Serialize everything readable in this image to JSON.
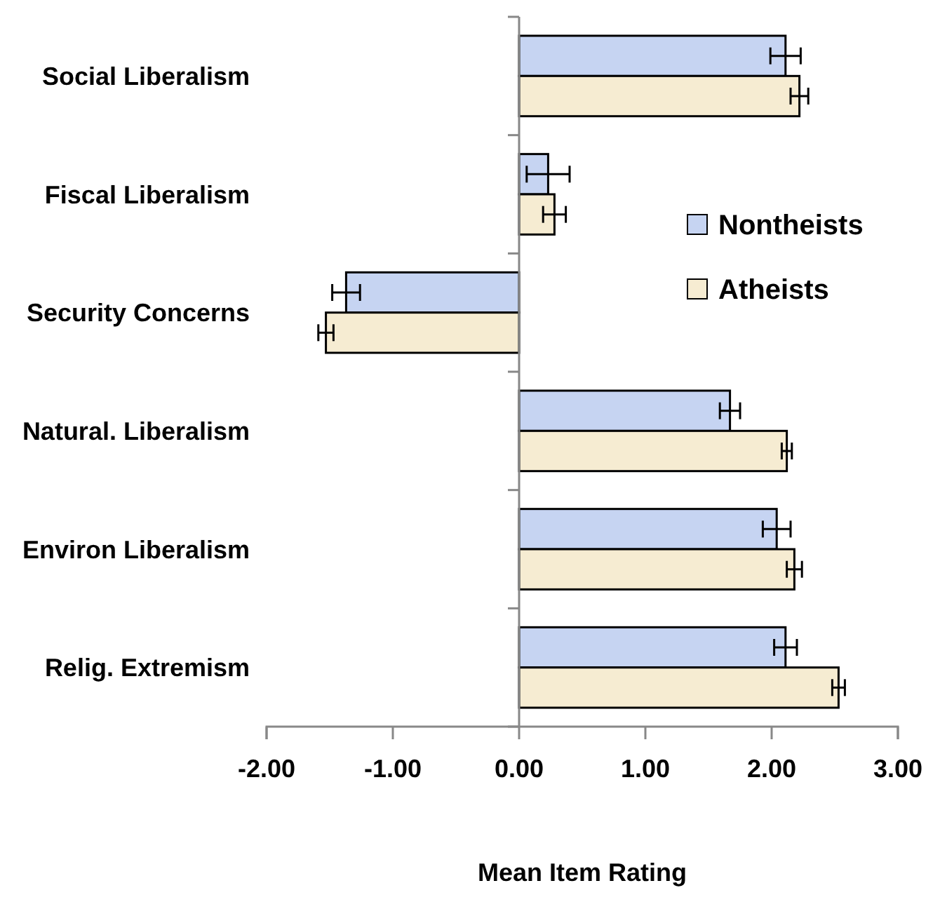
{
  "chart_data": {
    "type": "bar",
    "orientation": "horizontal",
    "xlabel": "Mean Item Rating",
    "categories": [
      "Social Liberalism",
      "Fiscal Liberalism",
      "Security Concerns",
      "Natural. Liberalism",
      "Environ Liberalism",
      "Relig. Extremism"
    ],
    "series": [
      {
        "name": "Nontheists",
        "color": "#c6d4f2",
        "values": [
          2.11,
          0.23,
          -1.37,
          1.67,
          2.04,
          2.11
        ],
        "errors": [
          0.12,
          0.17,
          0.11,
          0.08,
          0.11,
          0.09
        ]
      },
      {
        "name": "Atheists",
        "color": "#f6ecd2",
        "values": [
          2.22,
          0.28,
          -1.53,
          2.12,
          2.18,
          2.53
        ],
        "errors": [
          0.07,
          0.09,
          0.06,
          0.04,
          0.06,
          0.05
        ]
      }
    ],
    "xlim": [
      -2,
      3
    ],
    "xticks": [
      {
        "value": -2,
        "label": "-2.00"
      },
      {
        "value": -1,
        "label": "-1.00"
      },
      {
        "value": 0,
        "label": "0.00"
      },
      {
        "value": 1,
        "label": "1.00"
      },
      {
        "value": 2,
        "label": "2.00"
      },
      {
        "value": 3,
        "label": "3.00"
      }
    ],
    "legend": "right"
  }
}
